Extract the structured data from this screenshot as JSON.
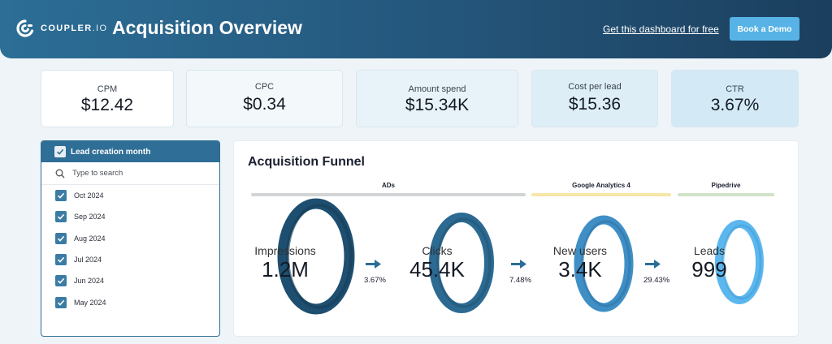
{
  "header": {
    "logo_text": "COUPLER",
    "logo_suffix": ".IO",
    "title": "Acquisition Overview",
    "promo_link": "Get this dashboard for free",
    "demo_button": "Book a Demo"
  },
  "kpis": [
    {
      "label": "CPM",
      "value": "$12.42"
    },
    {
      "label": "CPC",
      "value": "$0.34"
    },
    {
      "label": "Amount spend",
      "value": "$15.34K"
    },
    {
      "label": "Cost per lead",
      "value": "$15.36"
    },
    {
      "label": "CTR",
      "value": "3.67%"
    }
  ],
  "filter": {
    "title": "Lead creation month",
    "search_placeholder": "Type to search",
    "items": [
      "Oct 2024",
      "Sep 2024",
      "Aug 2024",
      "Jul 2024",
      "Jun 2024",
      "May 2024"
    ]
  },
  "funnel": {
    "title": "Acquisition Funnel",
    "sources": [
      {
        "name": "ADs",
        "color": "#d2d4d6"
      },
      {
        "name": "Google Analytics 4",
        "color": "#f6e6a8"
      },
      {
        "name": "Pipedrive",
        "color": "#cfe3c9"
      }
    ],
    "stages": [
      {
        "label": "Impressions",
        "value": "1.2M"
      },
      {
        "label": "Clicks",
        "value": "45.4K"
      },
      {
        "label": "New users",
        "value": "3.4K"
      },
      {
        "label": "Leads",
        "value": "999"
      }
    ],
    "conversions": [
      "3.67%",
      "7.48%",
      "29.43%"
    ]
  },
  "colors": {
    "header_start": "#2c6e96",
    "header_end": "#1b3f5e",
    "accent_button": "#57b3e6",
    "ring_1": "#1f4f70",
    "ring_2": "#2c6a92",
    "ring_3": "#3f8fc6",
    "ring_4": "#5cb7ef",
    "arrow": "#2a6d98"
  }
}
